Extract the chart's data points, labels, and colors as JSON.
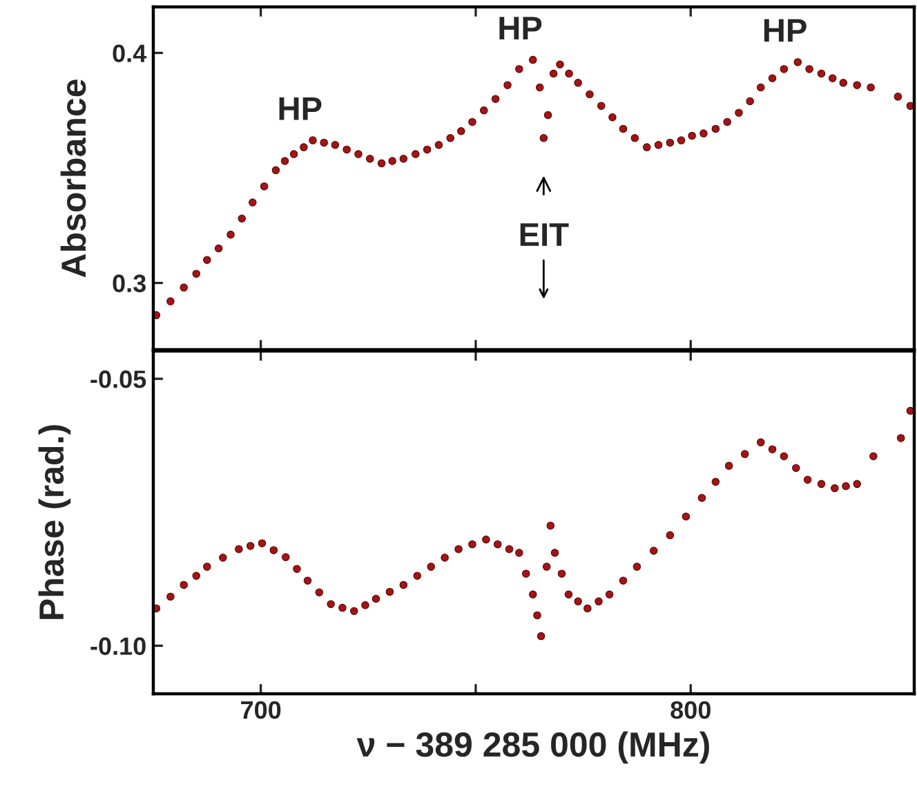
{
  "chart_data": [
    {
      "type": "scatter",
      "ylabel": "Absorbance",
      "xlim": [
        675,
        852
      ],
      "ylim": [
        0.271,
        0.42
      ],
      "xticks": [
        700,
        {
          "value": 750,
          "label": null
        },
        800
      ],
      "yticks": [
        0.3,
        0.4
      ],
      "tick_labels": "y",
      "grid": false,
      "legend": false,
      "marker": "circle",
      "annotations": [
        {
          "text": "HP",
          "x": 712.1,
          "y": 0.362
        },
        {
          "text": "HP",
          "x": 763.3,
          "y": 0.397
        },
        {
          "text": "HP",
          "x": 824.9,
          "y": 0.396
        },
        {
          "text": "EIT",
          "x": 765.8,
          "y": 0.363
        }
      ],
      "series": [
        {
          "color": "#a31515",
          "x": [
            675.7,
            679.0,
            682.1,
            685.0,
            687.5,
            690.2,
            693.0,
            695.6,
            698.1,
            700.8,
            703.5,
            705.6,
            707.7,
            710.0,
            712.1,
            714.7,
            717.3,
            720.0,
            722.7,
            725.4,
            728.1,
            730.6,
            733.2,
            736.0,
            738.7,
            741.4,
            744.1,
            746.6,
            749.2,
            751.9,
            754.6,
            757.4,
            760.1,
            763.3,
            764.9,
            765.8,
            766.8,
            768.1,
            769.6,
            771.7,
            773.8,
            776.5,
            779.2,
            781.8,
            784.3,
            787.0,
            789.8,
            792.5,
            795.2,
            797.8,
            800.3,
            803.0,
            805.8,
            808.5,
            811.2,
            813.8,
            816.3,
            819.0,
            821.7,
            824.9,
            827.6,
            830.4,
            833.0,
            835.5,
            838.7,
            841.9,
            848.2,
            851.1
          ],
          "values": [
            0.286,
            0.292,
            0.298,
            0.304,
            0.31,
            0.315,
            0.321,
            0.328,
            0.335,
            0.342,
            0.349,
            0.353,
            0.356,
            0.359,
            0.362,
            0.361,
            0.36,
            0.358,
            0.356,
            0.354,
            0.352,
            0.353,
            0.354,
            0.356,
            0.358,
            0.36,
            0.363,
            0.366,
            0.37,
            0.375,
            0.38,
            0.386,
            0.393,
            0.397,
            0.385,
            0.363,
            0.373,
            0.391,
            0.395,
            0.391,
            0.387,
            0.382,
            0.377,
            0.372,
            0.367,
            0.363,
            0.359,
            0.36,
            0.361,
            0.362,
            0.364,
            0.365,
            0.367,
            0.37,
            0.374,
            0.379,
            0.385,
            0.389,
            0.393,
            0.396,
            0.393,
            0.391,
            0.389,
            0.387,
            0.386,
            0.385,
            0.381,
            0.377
          ]
        }
      ]
    },
    {
      "type": "scatter",
      "ylabel": "Phase (rad.)",
      "xlabel": "ν − 389 285 000 (MHz)",
      "xlim": [
        675,
        852
      ],
      "ylim": [
        -0.109,
        -0.0448
      ],
      "xticks": [
        700,
        {
          "value": 750,
          "label": null
        },
        800
      ],
      "yticks": [
        {
          "value": -0.05,
          "label": "-0.05"
        },
        {
          "value": -0.1,
          "label": "-0.10"
        }
      ],
      "grid": false,
      "legend": false,
      "marker": "circle",
      "series": [
        {
          "color": "#a31515",
          "x": [
            675.7,
            679.0,
            682.1,
            685.0,
            687.5,
            691.2,
            694.9,
            697.6,
            700.3,
            703.0,
            705.8,
            708.4,
            710.9,
            713.6,
            716.3,
            719.0,
            721.7,
            724.3,
            726.8,
            730.0,
            733.2,
            736.4,
            739.6,
            742.8,
            746.0,
            749.2,
            752.4,
            755.1,
            757.8,
            760.1,
            761.7,
            763.3,
            764.3,
            765.2,
            766.5,
            767.4,
            768.4,
            770.0,
            771.6,
            773.8,
            776.0,
            778.6,
            781.1,
            784.3,
            787.5,
            791.4,
            795.2,
            798.9,
            802.6,
            805.8,
            808.9,
            812.6,
            816.3,
            819.0,
            821.7,
            824.5,
            827.2,
            830.4,
            833.5,
            836.1,
            838.7,
            842.5,
            848.9,
            851.1
          ],
          "values": [
            -0.093,
            -0.0908,
            -0.0886,
            -0.0869,
            -0.0852,
            -0.0835,
            -0.0819,
            -0.0813,
            -0.0808,
            -0.0821,
            -0.0834,
            -0.0856,
            -0.0878,
            -0.09,
            -0.0922,
            -0.0929,
            -0.0935,
            -0.0924,
            -0.0912,
            -0.0899,
            -0.0886,
            -0.0869,
            -0.0852,
            -0.0835,
            -0.0819,
            -0.081,
            -0.0801,
            -0.081,
            -0.0819,
            -0.0826,
            -0.0865,
            -0.0904,
            -0.0943,
            -0.0982,
            -0.0852,
            -0.0775,
            -0.0826,
            -0.0865,
            -0.0904,
            -0.0917,
            -0.093,
            -0.0917,
            -0.0904,
            -0.0878,
            -0.0852,
            -0.0822,
            -0.0793,
            -0.0758,
            -0.0723,
            -0.0693,
            -0.0663,
            -0.0641,
            -0.0619,
            -0.0632,
            -0.0645,
            -0.0667,
            -0.0689,
            -0.0697,
            -0.0705,
            -0.0701,
            -0.0697,
            -0.0645,
            -0.0611,
            -0.056
          ]
        }
      ]
    }
  ]
}
